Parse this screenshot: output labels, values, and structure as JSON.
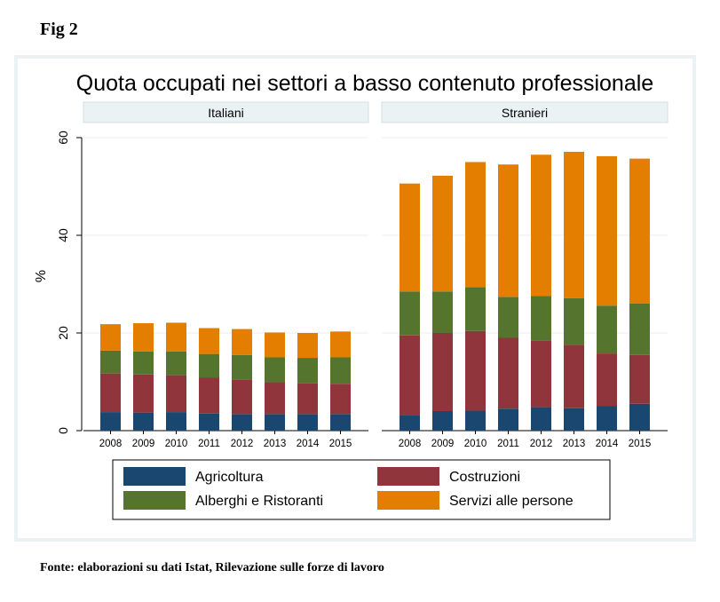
{
  "figure": {
    "label": "Fig 2",
    "source": "Fonte: elaborazioni su dati Istat, Rilevazione sulle forze di lavoro"
  },
  "chart_data": {
    "type": "bar",
    "stacked": true,
    "title": "Quota occupati nei settori a basso contenuto professionale",
    "ylabel": "%",
    "xlabel": "",
    "ylim": [
      0,
      60
    ],
    "yticks": [
      0,
      20,
      40,
      60
    ],
    "grid": true,
    "legend_position": "bottom",
    "categories": [
      "2008",
      "2009",
      "2010",
      "2011",
      "2012",
      "2013",
      "2014",
      "2015"
    ],
    "colors": {
      "Agricoltura": "#1a476f",
      "Costruzioni": "#90353b",
      "Alberghi e Ristoranti": "#55752f",
      "Servizi alle persone": "#e37e00"
    },
    "legend_order": [
      "Agricoltura",
      "Costruzioni",
      "Alberghi e Ristoranti",
      "Servizi alle persone"
    ],
    "panels": [
      {
        "name": "Italiani",
        "series": [
          {
            "name": "Agricoltura",
            "values": [
              3.8,
              3.7,
              3.8,
              3.5,
              3.4,
              3.4,
              3.4,
              3.4
            ]
          },
          {
            "name": "Costruzioni",
            "values": [
              7.9,
              7.8,
              7.6,
              7.4,
              7.1,
              6.5,
              6.3,
              6.2
            ]
          },
          {
            "name": "Alberghi e Ristoranti",
            "values": [
              4.7,
              4.7,
              4.8,
              4.8,
              5.0,
              5.1,
              5.2,
              5.4
            ]
          },
          {
            "name": "Servizi alle persone",
            "values": [
              5.4,
              5.8,
              5.9,
              5.3,
              5.3,
              5.1,
              5.1,
              5.3
            ]
          }
        ]
      },
      {
        "name": "Stranieri",
        "series": [
          {
            "name": "Agricoltura",
            "values": [
              3.2,
              4.0,
              4.1,
              4.5,
              4.8,
              4.6,
              5.0,
              5.5
            ]
          },
          {
            "name": "Costruzioni",
            "values": [
              16.3,
              16.0,
              16.3,
              14.5,
              13.7,
              13.0,
              10.8,
              10.0
            ]
          },
          {
            "name": "Alberghi e Ristoranti",
            "values": [
              9.0,
              8.5,
              9.0,
              8.4,
              9.1,
              9.5,
              9.8,
              10.5
            ]
          },
          {
            "name": "Servizi alle persone",
            "values": [
              22.1,
              23.7,
              25.6,
              27.1,
              28.9,
              30.0,
              30.6,
              29.7
            ]
          }
        ]
      }
    ]
  }
}
